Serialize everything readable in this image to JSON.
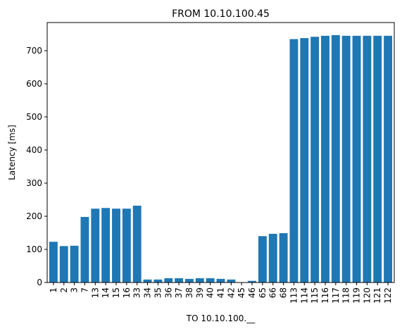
{
  "chart_data": {
    "type": "bar",
    "title": "FROM 10.10.100.45",
    "xlabel": "TO 10.10.100.__",
    "ylabel": "Latency [ms]",
    "ylim": [
      0,
      785
    ],
    "yticks": [
      0,
      100,
      200,
      300,
      400,
      500,
      600,
      700
    ],
    "grid": false,
    "bar_color": "#1f77b4",
    "categories": [
      "1",
      "2",
      "3",
      "7",
      "13",
      "14",
      "15",
      "16",
      "33",
      "34",
      "35",
      "36",
      "37",
      "38",
      "39",
      "40",
      "41",
      "42",
      "45",
      "46",
      "65",
      "66",
      "68",
      "113",
      "114",
      "115",
      "116",
      "117",
      "118",
      "119",
      "120",
      "121",
      "122"
    ],
    "values": [
      123,
      110,
      111,
      198,
      223,
      225,
      223,
      223,
      232,
      9,
      9,
      13,
      13,
      11,
      13,
      13,
      11,
      9,
      1,
      5,
      140,
      147,
      149,
      735,
      738,
      742,
      745,
      747,
      745,
      745,
      745,
      745,
      745
    ]
  }
}
